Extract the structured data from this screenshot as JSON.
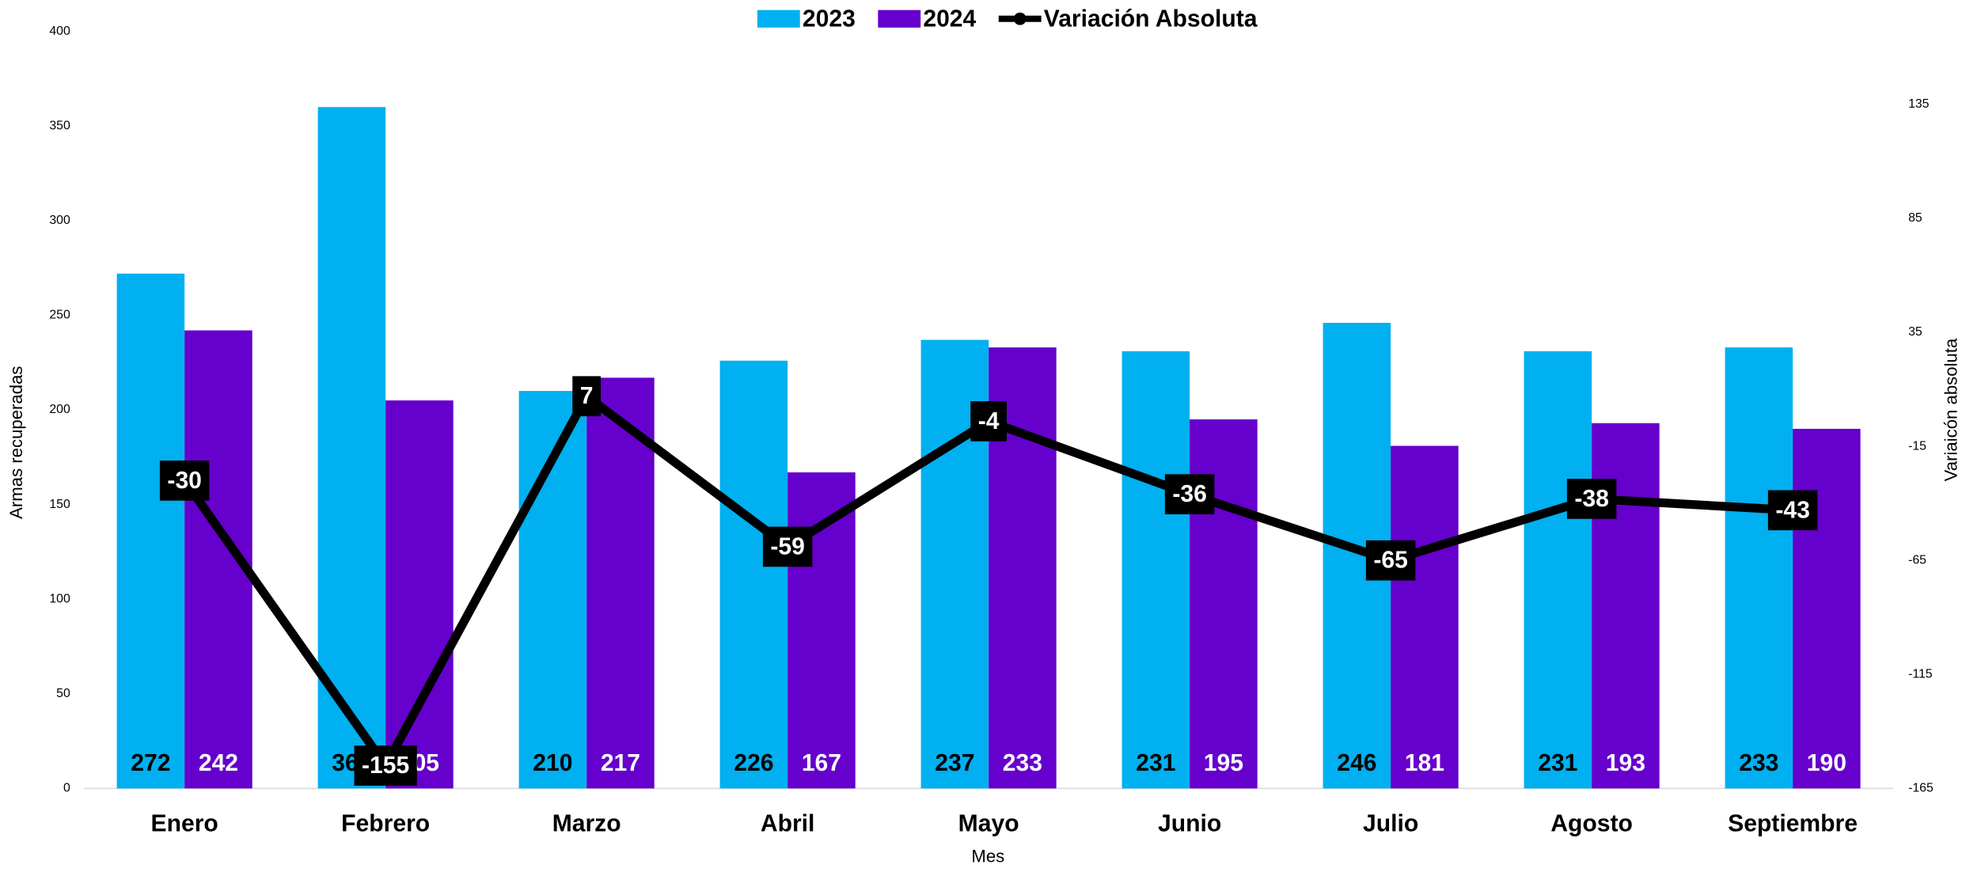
{
  "chart_data": {
    "type": "bar",
    "x_label": "Mes",
    "y_label": "Armas recuperadas",
    "y2_label": "Variaicón absoluta",
    "categories": [
      "Enero",
      "Febrero",
      "Marzo",
      "Abril",
      "Mayo",
      "Junio",
      "Julio",
      "Agosto",
      "Septiembre"
    ],
    "series": [
      {
        "name": "2023",
        "type": "bar",
        "color": "#00b0f0",
        "values": [
          272,
          360,
          210,
          226,
          237,
          231,
          246,
          231,
          233
        ]
      },
      {
        "name": "2024",
        "type": "bar",
        "color": "#6600cc",
        "values": [
          242,
          205,
          217,
          167,
          233,
          195,
          181,
          193,
          190
        ]
      },
      {
        "name": "Variación Absoluta",
        "type": "line",
        "axis": "y2",
        "color": "#000000",
        "values": [
          -30,
          -155,
          7,
          -59,
          -4,
          -36,
          -65,
          -38,
          -43
        ]
      }
    ],
    "ylim": [
      0,
      400
    ],
    "yticks": [
      0,
      50,
      100,
      150,
      200,
      250,
      300,
      350,
      400
    ],
    "y2lim": [
      -165,
      167
    ],
    "y2ticks": [
      -165,
      -115,
      -65,
      -15,
      35,
      85,
      135
    ],
    "legend": "top"
  }
}
